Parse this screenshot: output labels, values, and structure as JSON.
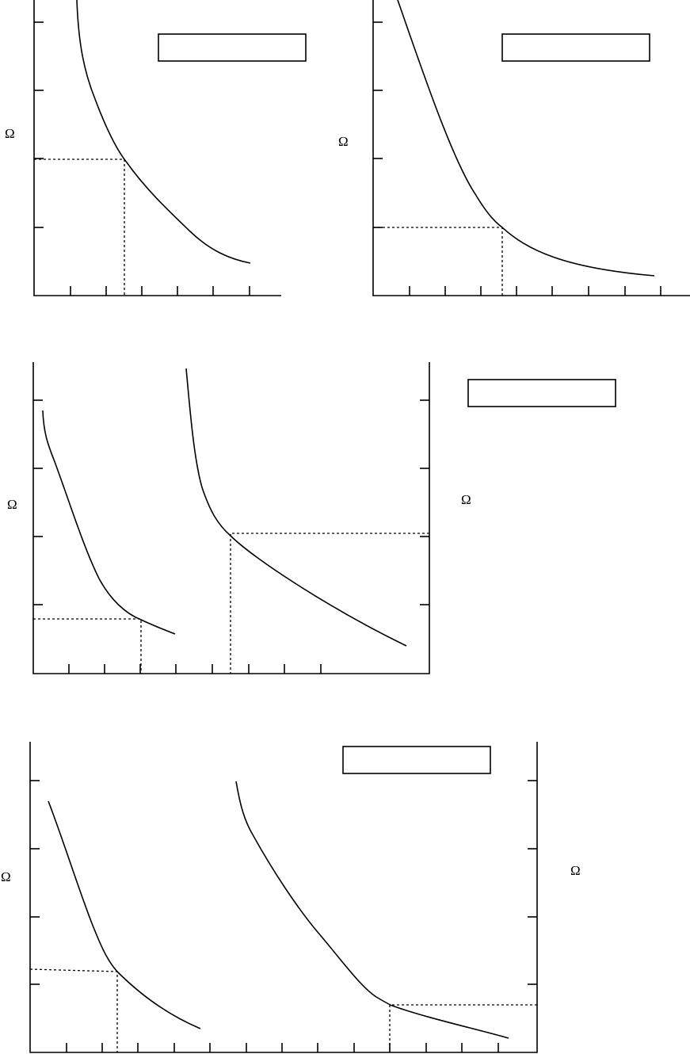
{
  "panels": [
    {
      "y_label": "Ω"
    },
    {
      "y_label": "Ω"
    },
    {
      "y_label": "Ω",
      "y2_label": "Ω"
    },
    {
      "y_label": "Ω",
      "y2_label": "Ω"
    }
  ]
}
